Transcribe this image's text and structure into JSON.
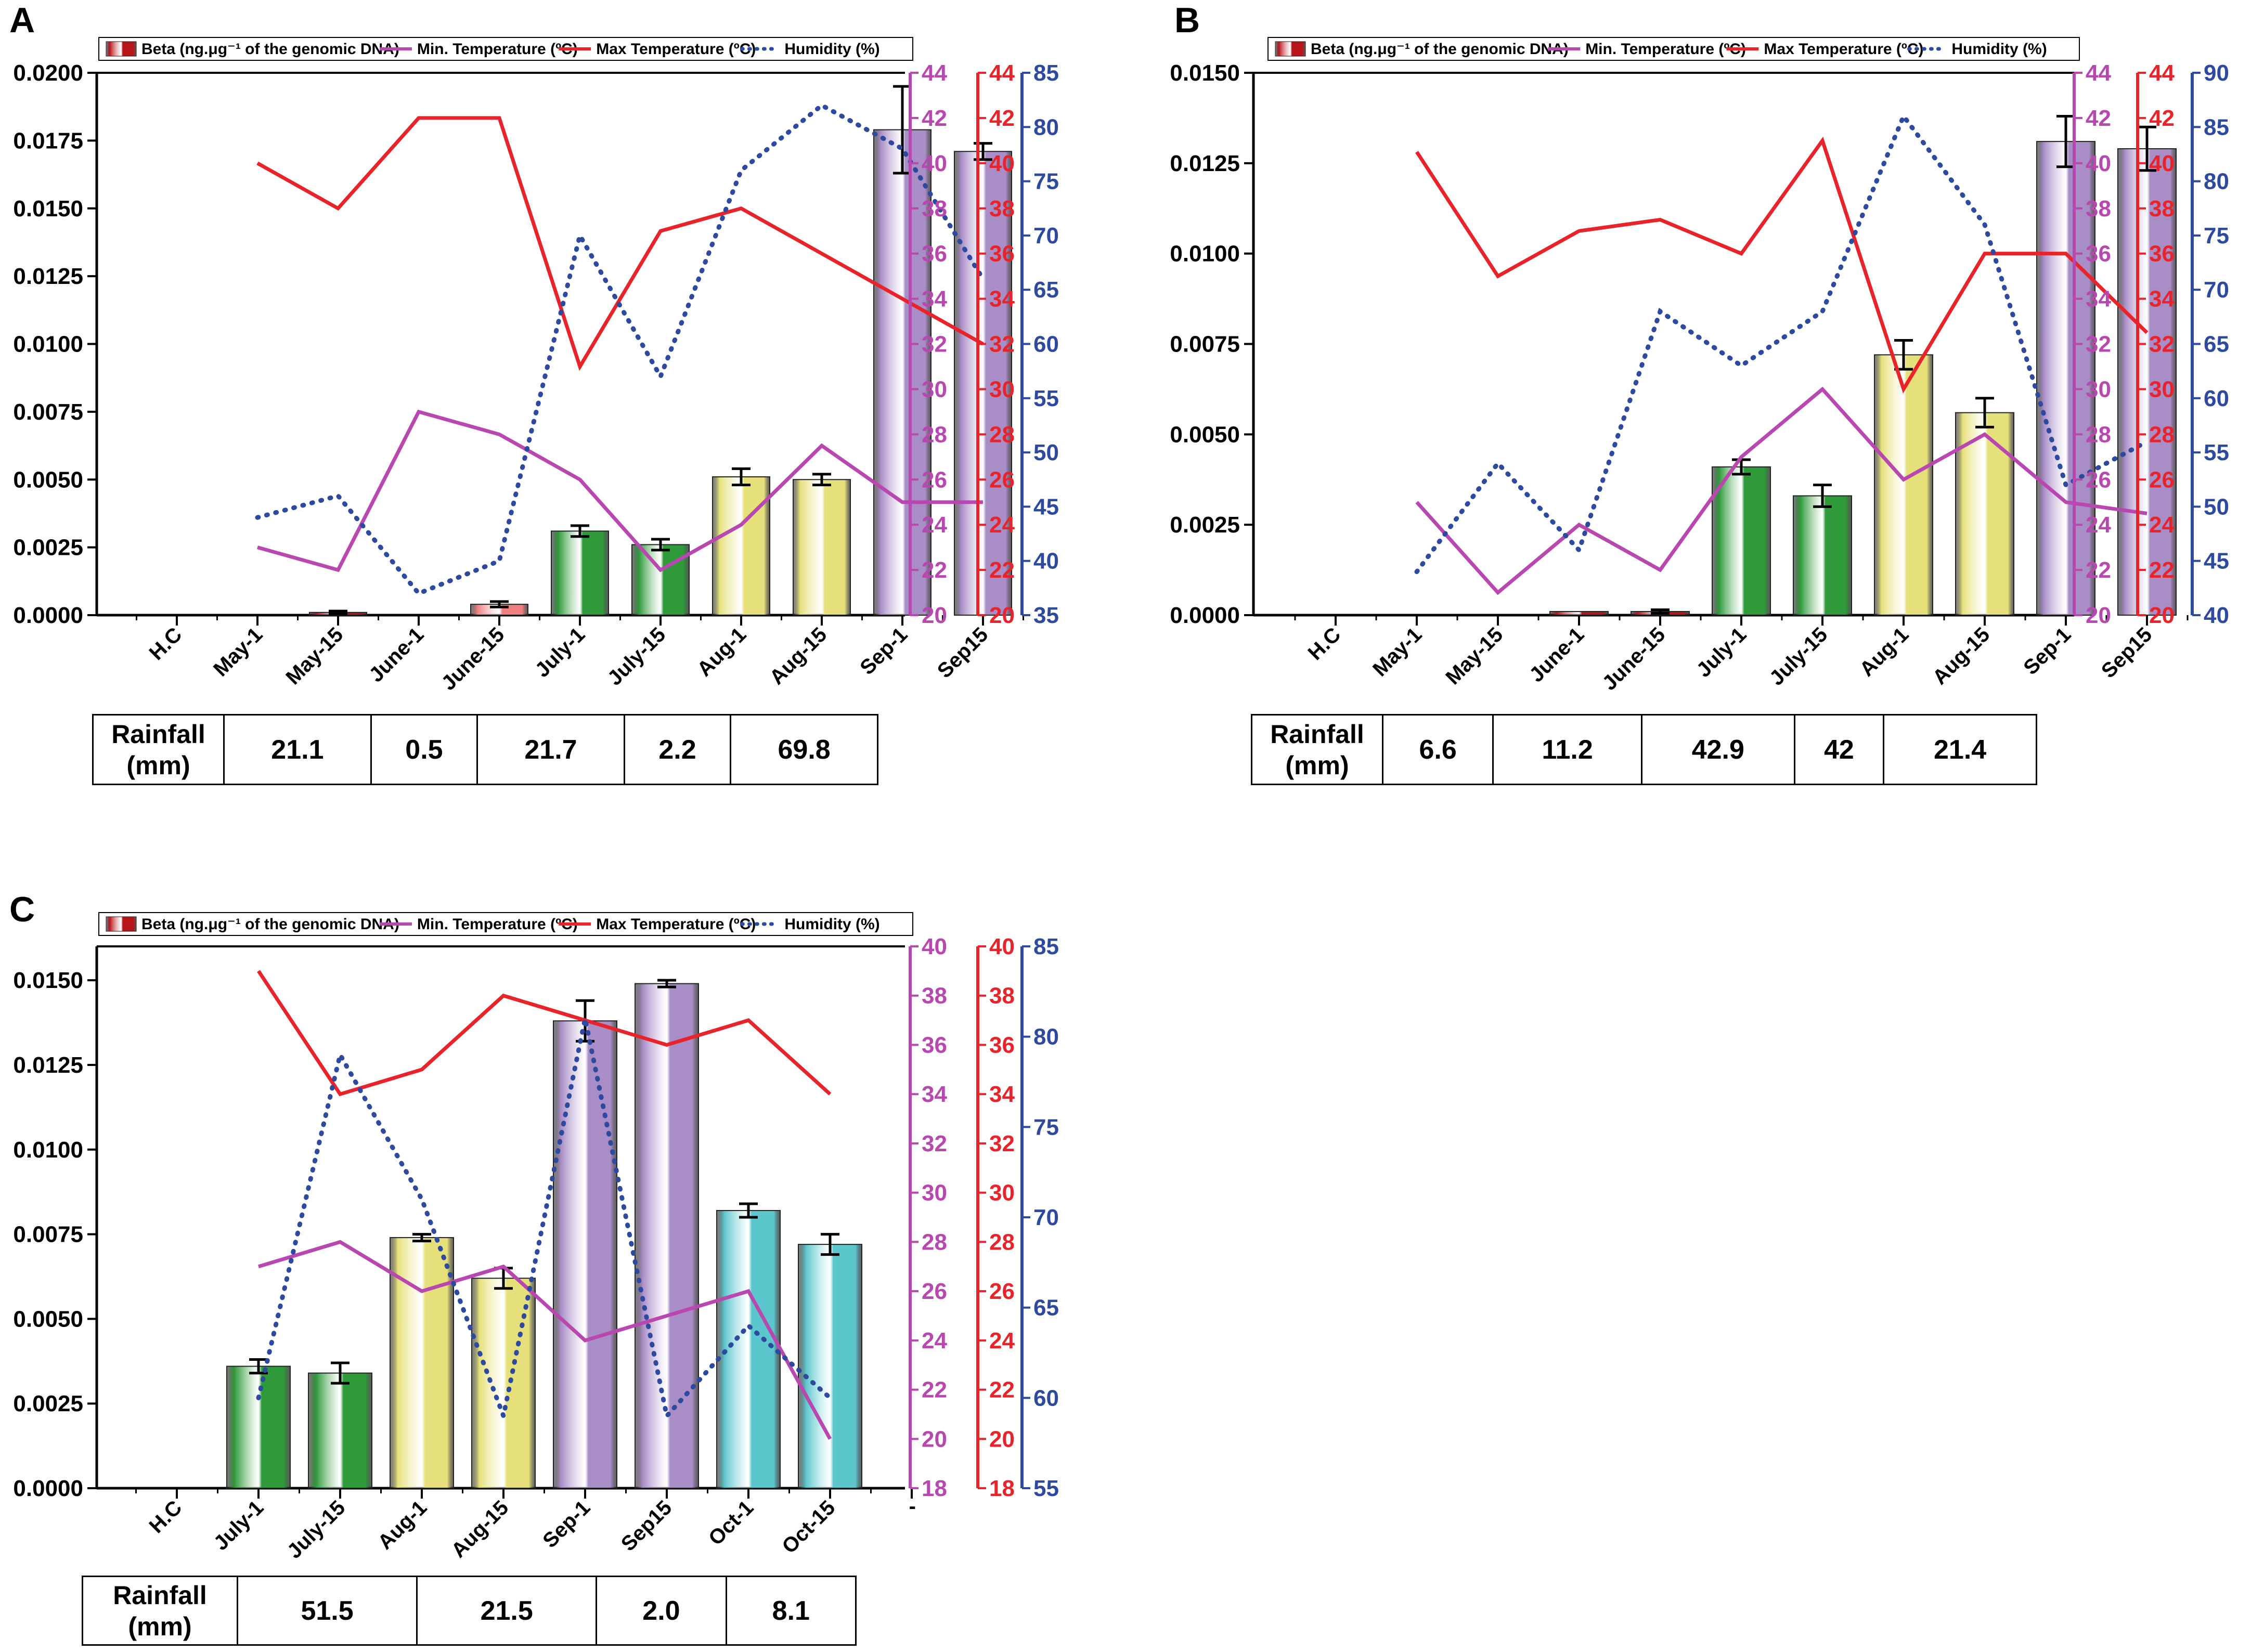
{
  "figure": {
    "colors": {
      "axis": "#000000",
      "min_temp": "#B847B0",
      "max_temp": "#E8232A",
      "humidity": "#2E4A9E",
      "bar_red": "#B8151B",
      "bar_pink": "#F08080",
      "bar_green": "#2E9A3A",
      "bar_yellow": "#E6E07A",
      "bar_purple": "#A98DC6",
      "bar_cyan": "#5BC6CC"
    },
    "legend": {
      "beta": "Beta (ng.μg⁻¹ of the genomic DNA)",
      "min_temp": "Min. Temperature (ºC)",
      "max_temp": "Max Temperature (ºC)",
      "humidity": "Humidity (%)"
    },
    "rainfall_label_line1": "Rainfall",
    "rainfall_label_line2": "(mm)"
  },
  "chart_data": [
    {
      "panel": "A",
      "type": "bar",
      "categories": [
        "H.C",
        "May-1",
        "May-15",
        "June-1",
        "June-15",
        "July-1",
        "July-15",
        "Aug-1",
        "Aug-15",
        "Sep-1",
        "Sep15"
      ],
      "series": [
        {
          "name": "Beta (ng.μg⁻¹ of the genomic DNA)",
          "values": [
            0,
            0,
            0.0001,
            0,
            0.0004,
            0.0031,
            0.0026,
            0.0051,
            0.005,
            0.0179,
            0.0171
          ],
          "errors": [
            0,
            0,
            5e-05,
            0,
            0.0001,
            0.0002,
            0.0002,
            0.0003,
            0.0002,
            0.0016,
            0.0003
          ],
          "bar_colors": [
            "bar_red",
            "bar_red",
            "bar_red",
            "bar_red",
            "bar_pink",
            "bar_green",
            "bar_green",
            "bar_yellow",
            "bar_yellow",
            "bar_purple",
            "bar_purple"
          ]
        },
        {
          "name": "Min. Temperature (ºC)",
          "axis": "min",
          "values": [
            null,
            23,
            22,
            29,
            28,
            26,
            22,
            24,
            27.5,
            25,
            25
          ]
        },
        {
          "name": "Max Temperature (ºC)",
          "axis": "max",
          "values": [
            null,
            40,
            38,
            42,
            42,
            31,
            37,
            38,
            36,
            34,
            32
          ]
        },
        {
          "name": "Humidity (%)",
          "axis": "hum",
          "values": [
            null,
            44,
            46,
            37,
            40,
            70,
            57,
            76,
            82,
            78,
            66
          ]
        }
      ],
      "yticks_left": [
        "0.0000",
        "0.0025",
        "0.0050",
        "0.0075",
        "0.0100",
        "0.0125",
        "0.0150",
        "0.0175",
        "0.0200"
      ],
      "ylim_left": [
        0,
        0.02
      ],
      "min_axis": {
        "lim": [
          20,
          44
        ],
        "ticks": [
          "20",
          "22",
          "24",
          "26",
          "28",
          "30",
          "32",
          "34",
          "36",
          "38",
          "40",
          "42",
          "44"
        ]
      },
      "max_axis": {
        "lim": [
          20,
          44
        ],
        "ticks": [
          "20",
          "22",
          "24",
          "26",
          "28",
          "30",
          "32",
          "34",
          "36",
          "38",
          "40",
          "42",
          "44"
        ]
      },
      "hum_axis": {
        "lim": [
          35,
          85
        ],
        "ticks": [
          "35",
          "40",
          "45",
          "50",
          "55",
          "60",
          "65",
          "70",
          "75",
          "80",
          "85"
        ]
      },
      "rainfall": [
        "21.1",
        "0.5",
        "21.7",
        "2.2",
        "69.8"
      ],
      "extra_tick": ""
    },
    {
      "panel": "B",
      "type": "bar",
      "categories": [
        "H.C",
        "May-1",
        "May-15",
        "June-1",
        "June-15",
        "July-1",
        "July-15",
        "Aug-1",
        "Aug-15",
        "Sep-1",
        "Sep15"
      ],
      "series": [
        {
          "name": "Beta (ng.μg⁻¹ of the genomic DNA)",
          "values": [
            0,
            0,
            0,
            0.0001,
            0.0001,
            0.0041,
            0.0033,
            0.0072,
            0.0056,
            0.0131,
            0.0129
          ],
          "errors": [
            0,
            0,
            0,
            0,
            5e-05,
            0.0002,
            0.0003,
            0.0004,
            0.0004,
            0.0007,
            0.0006
          ],
          "bar_colors": [
            "bar_red",
            "bar_red",
            "bar_red",
            "bar_red",
            "bar_red",
            "bar_green",
            "bar_green",
            "bar_yellow",
            "bar_yellow",
            "bar_purple",
            "bar_purple"
          ]
        },
        {
          "name": "Min. Temperature (ºC)",
          "axis": "min",
          "values": [
            null,
            25,
            21,
            24,
            22,
            27,
            30,
            26,
            28,
            25,
            24.5
          ]
        },
        {
          "name": "Max Temperature (ºC)",
          "axis": "max",
          "values": [
            null,
            40.5,
            35,
            37,
            37.5,
            36,
            41,
            30,
            36,
            36,
            32.5
          ]
        },
        {
          "name": "Humidity (%)",
          "axis": "hum",
          "values": [
            null,
            44,
            54,
            46,
            68,
            63,
            68,
            86,
            76,
            52,
            56
          ]
        }
      ],
      "yticks_left": [
        "0.0000",
        "0.0025",
        "0.0050",
        "0.0075",
        "0.0100",
        "0.0125",
        "0.0150"
      ],
      "ylim_left": [
        0,
        0.015
      ],
      "min_axis": {
        "lim": [
          20,
          44
        ],
        "ticks": [
          "20",
          "22",
          "24",
          "26",
          "28",
          "30",
          "32",
          "34",
          "36",
          "38",
          "40",
          "42",
          "44"
        ]
      },
      "max_axis": {
        "lim": [
          20,
          44
        ],
        "ticks": [
          "20",
          "22",
          "24",
          "26",
          "28",
          "30",
          "32",
          "34",
          "36",
          "38",
          "40",
          "42",
          "44"
        ]
      },
      "hum_axis": {
        "lim": [
          40,
          90
        ],
        "ticks": [
          "40",
          "45",
          "50",
          "55",
          "60",
          "65",
          "70",
          "75",
          "80",
          "85",
          "90"
        ]
      },
      "rainfall": [
        "6.6",
        "11.2",
        "42.9",
        "42",
        "21.4"
      ],
      "extra_tick": ""
    },
    {
      "panel": "C",
      "type": "bar",
      "categories": [
        "H.C",
        "July-1",
        "July-15",
        "Aug-1",
        "Aug-15",
        "Sep-1",
        "Sep15",
        "Oct-1",
        "Oct-15"
      ],
      "series": [
        {
          "name": "Beta (ng.μg⁻¹ of the genomic DNA)",
          "values": [
            0,
            0.0036,
            0.0034,
            0.0074,
            0.0062,
            0.0138,
            0.0149,
            0.0082,
            0.0072
          ],
          "errors": [
            0,
            0.0002,
            0.0003,
            0.0001,
            0.0003,
            0.0006,
            0.0001,
            0.0002,
            0.0003
          ],
          "bar_colors": [
            "bar_red",
            "bar_green",
            "bar_green",
            "bar_yellow",
            "bar_yellow",
            "bar_purple",
            "bar_purple",
            "bar_cyan",
            "bar_cyan"
          ]
        },
        {
          "name": "Min. Temperature (ºC)",
          "axis": "min",
          "values": [
            null,
            27,
            28,
            26,
            27,
            24,
            25,
            26,
            20
          ]
        },
        {
          "name": "Max Temperature (ºC)",
          "axis": "max",
          "values": [
            null,
            39,
            34,
            35,
            38,
            37,
            36,
            37,
            34
          ]
        },
        {
          "name": "Humidity (%)",
          "axis": "hum",
          "values": [
            null,
            60,
            79,
            71,
            59,
            81,
            59,
            64,
            60
          ]
        }
      ],
      "yticks_left": [
        "0.0000",
        "0.0025",
        "0.0050",
        "0.0075",
        "0.0100",
        "0.0125",
        "0.0150"
      ],
      "ylim_left": [
        0,
        0.016
      ],
      "min_axis": {
        "lim": [
          18,
          40
        ],
        "ticks": [
          "18",
          "20",
          "22",
          "24",
          "26",
          "28",
          "30",
          "32",
          "34",
          "36",
          "38",
          "40"
        ]
      },
      "max_axis": {
        "lim": [
          18,
          40
        ],
        "ticks": [
          "18",
          "20",
          "22",
          "24",
          "26",
          "28",
          "30",
          "32",
          "34",
          "36",
          "38",
          "40"
        ]
      },
      "hum_axis": {
        "lim": [
          55,
          85
        ],
        "ticks": [
          "55",
          "60",
          "65",
          "70",
          "75",
          "80",
          "85"
        ]
      },
      "rainfall": [
        "51.5",
        "21.5",
        "2.0",
        "8.1"
      ],
      "extra_tick": "-"
    }
  ]
}
